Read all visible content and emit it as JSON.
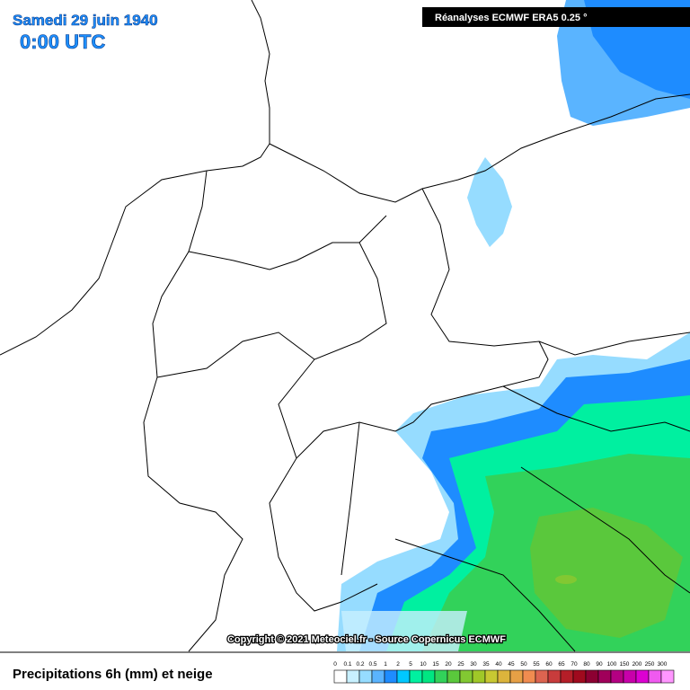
{
  "header": {
    "date": "Samedi 29 juin 1940",
    "time": "0:00 UTC",
    "source": "Réanalyses ECMWF ERA5 0.25 °"
  },
  "copyright": "Copyright © 2021 Meteociel.fr - Source Copernicus ECMWF",
  "legend": {
    "title": "Precipitations 6h (mm) et neige",
    "levels": [
      "0",
      "0.1",
      "0.2",
      "0.5",
      "1",
      "2",
      "5",
      "10",
      "15",
      "20",
      "25",
      "30",
      "35",
      "40",
      "45",
      "50",
      "55",
      "60",
      "65",
      "70",
      "80",
      "90",
      "100",
      "150",
      "200",
      "250",
      "300"
    ],
    "colors": [
      "#ffffff",
      "#c8f0ff",
      "#96dcff",
      "#5ab4ff",
      "#1e8cff",
      "#00c8ff",
      "#00f0a0",
      "#00e682",
      "#32d25a",
      "#5ac83c",
      "#82c832",
      "#a0c828",
      "#c8c832",
      "#dcb43c",
      "#e6a046",
      "#f08c50",
      "#dc6450",
      "#c83c3c",
      "#b41e28",
      "#a00a1e",
      "#8c0032",
      "#a0005a",
      "#b40082",
      "#c800aa",
      "#dc00d2",
      "#f05af0",
      "#ff96ff"
    ]
  }
}
